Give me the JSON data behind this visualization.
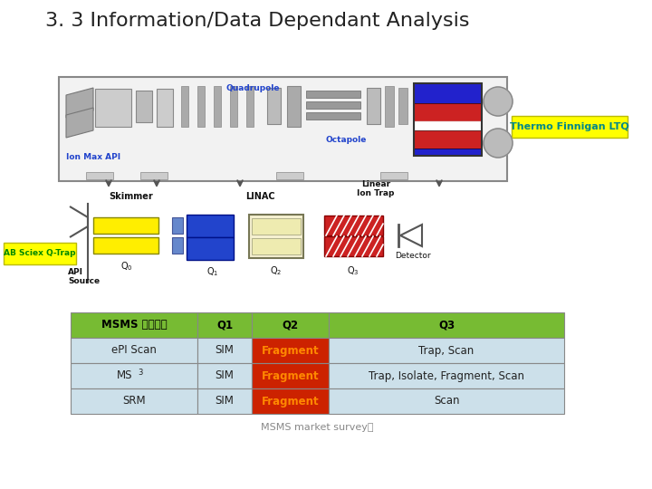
{
  "title": "3. 3 Information/Data Dependant Analysis",
  "title_fontsize": 16,
  "background_color": "#ffffff",
  "thermo_label": "Thermo Finnigan LTQ",
  "thermo_label_bg": "#ffff00",
  "thermo_label_color": "#008888",
  "ab_sciex_label": "AB Sciex Q-Trap",
  "ab_sciex_label_bg": "#ffff00",
  "ab_sciex_label_color": "#008800",
  "table_header_bg": "#77bb33",
  "table_header_color": "#000000",
  "table_row_bg": "#cce0ea",
  "table_q2_bg": "#cc2200",
  "table_q2_color": "#ff8800",
  "table_border_color": "#aaaaaa",
  "table_headers": [
    "MSMS 주요기능",
    "Q1",
    "Q2",
    "Q3"
  ],
  "table_rows": [
    [
      "ePI Scan",
      "SIM",
      "Fragment",
      "Trap, Scan"
    ],
    [
      "MS³",
      "SIM",
      "Fragment",
      "Trap, Isolate, Fragment, Scan"
    ],
    [
      "SRM",
      "SIM",
      "Fragment",
      "Scan"
    ]
  ],
  "footer": "MSMS market survey용",
  "footer_fontsize": 8
}
